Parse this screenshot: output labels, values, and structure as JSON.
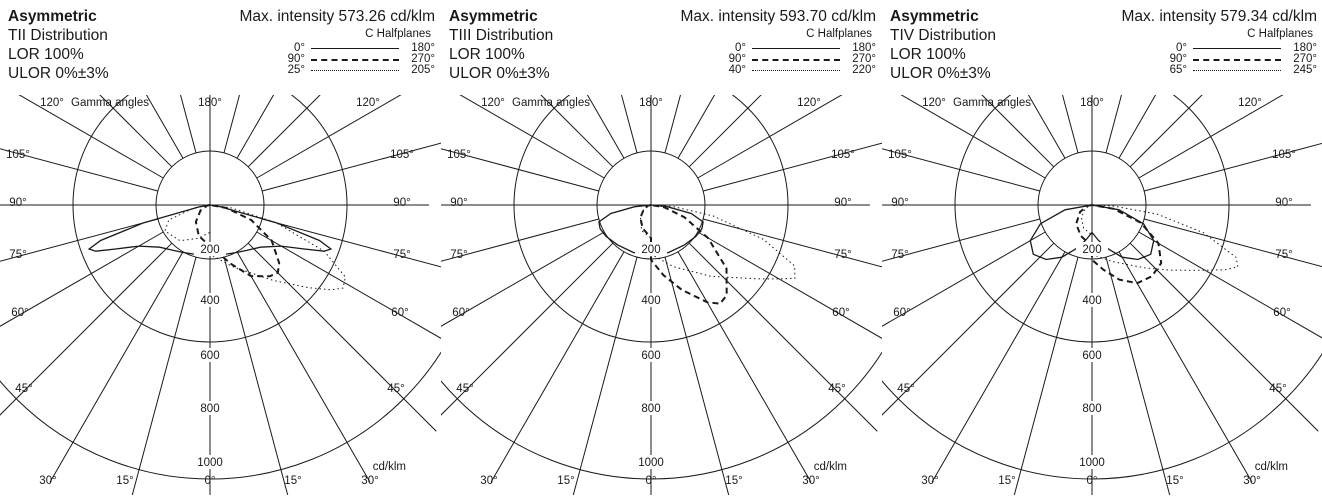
{
  "panels": [
    {
      "title": "Asymmetric",
      "distribution": "TII Distribution",
      "lor": "LOR 100%",
      "ulor": "ULOR 0%±3%",
      "max_intensity": "Max. intensity 573.26 cd/klm",
      "legend": {
        "title": "C Halfplanes",
        "rows": [
          {
            "a": "0°",
            "b": "180°",
            "style": "solid"
          },
          {
            "a": "90°",
            "b": "270°",
            "style": "dashed"
          },
          {
            "a": "25°",
            "b": "205°",
            "style": "dotted"
          }
        ]
      },
      "gamma_label": "Gamma angles",
      "unit_label": "cd/klm"
    },
    {
      "title": "Asymmetric",
      "distribution": "TIII Distribution",
      "lor": "LOR 100%",
      "ulor": "ULOR 0%±3%",
      "max_intensity": "Max. intensity 593.70 cd/klm",
      "legend": {
        "title": "C Halfplanes",
        "rows": [
          {
            "a": "0°",
            "b": "180°",
            "style": "solid"
          },
          {
            "a": "90°",
            "b": "270°",
            "style": "dashed"
          },
          {
            "a": "40°",
            "b": "220°",
            "style": "dotted"
          }
        ]
      },
      "gamma_label": "Gamma angles",
      "unit_label": "cd/klm"
    },
    {
      "title": "Asymmetric",
      "distribution": "TIV Distribution",
      "lor": "LOR 100%",
      "ulor": "ULOR 0%±3%",
      "max_intensity": "Max. intensity 579.34 cd/klm",
      "legend": {
        "title": "C Halfplanes",
        "rows": [
          {
            "a": "0°",
            "b": "180°",
            "style": "solid"
          },
          {
            "a": "90°",
            "b": "270°",
            "style": "dashed"
          },
          {
            "a": "65°",
            "b": "245°",
            "style": "dotted"
          }
        ]
      },
      "gamma_label": "Gamma angles",
      "unit_label": "cd/klm"
    }
  ],
  "chart_data": [
    {
      "type": "polar",
      "title": "TII Distribution",
      "radial_ticks": [
        200,
        400,
        600,
        800,
        1000
      ],
      "angle_labels_left": [
        "120°",
        "105°",
        "90°",
        "75°",
        "60°",
        "45°",
        "30°"
      ],
      "angle_labels_right": [
        "120°",
        "105°",
        "90°",
        "75°",
        "60°",
        "45°",
        "30°"
      ],
      "angle_labels_bottom": [
        "30°",
        "15°",
        "0°",
        "15°",
        "30°"
      ],
      "angle_label_top": "180°",
      "series": [
        {
          "name": "0° - 180°",
          "style": "solid",
          "left": [
            [
              0,
              180
            ],
            [
              10,
              185
            ],
            [
              20,
              190
            ],
            [
              30,
              200
            ],
            [
              40,
              215
            ],
            [
              50,
              240
            ],
            [
              60,
              300
            ],
            [
              65,
              380
            ],
            [
              68,
              450
            ],
            [
              70,
              470
            ],
            [
              72,
              420
            ],
            [
              75,
              250
            ],
            [
              80,
              40
            ],
            [
              90,
              0
            ]
          ],
          "right": [
            [
              0,
              180
            ],
            [
              10,
              185
            ],
            [
              20,
              190
            ],
            [
              30,
              200
            ],
            [
              40,
              215
            ],
            [
              50,
              240
            ],
            [
              60,
              300
            ],
            [
              65,
              380
            ],
            [
              68,
              450
            ],
            [
              70,
              470
            ],
            [
              72,
              420
            ],
            [
              75,
              250
            ],
            [
              80,
              40
            ],
            [
              90,
              0
            ]
          ]
        },
        {
          "name": "90° - 270°",
          "style": "dashed",
          "left": [
            [
              0,
              150
            ],
            [
              20,
              120
            ],
            [
              40,
              80
            ],
            [
              60,
              40
            ],
            [
              80,
              10
            ],
            [
              90,
              0
            ]
          ],
          "right": [
            [
              0,
              150
            ],
            [
              10,
              180
            ],
            [
              20,
              230
            ],
            [
              30,
              300
            ],
            [
              40,
              340
            ],
            [
              45,
              350
            ],
            [
              50,
              330
            ],
            [
              60,
              260
            ],
            [
              70,
              160
            ],
            [
              80,
              60
            ],
            [
              90,
              0
            ]
          ]
        },
        {
          "name": "25° - 205°",
          "style": "dotted",
          "left": [
            [
              0,
              100
            ],
            [
              20,
              130
            ],
            [
              40,
              170
            ],
            [
              60,
              190
            ],
            [
              70,
              160
            ],
            [
              80,
              60
            ],
            [
              90,
              0
            ]
          ],
          "right": [
            [
              0,
              180
            ],
            [
              20,
              240
            ],
            [
              40,
              360
            ],
            [
              50,
              470
            ],
            [
              55,
              540
            ],
            [
              58,
              573
            ],
            [
              62,
              560
            ],
            [
              68,
              450
            ],
            [
              75,
              250
            ],
            [
              82,
              80
            ],
            [
              90,
              0
            ]
          ]
        }
      ]
    },
    {
      "type": "polar",
      "title": "TIII Distribution",
      "radial_ticks": [
        200,
        400,
        600,
        800,
        1000
      ],
      "angle_labels_left": [
        "120°",
        "105°",
        "90°",
        "75°",
        "60°",
        "45°",
        "30°"
      ],
      "angle_labels_right": [
        "120°",
        "105°",
        "90°",
        "75°",
        "60°",
        "45°",
        "30°"
      ],
      "angle_labels_bottom": [
        "30°",
        "15°",
        "0°",
        "15°",
        "30°"
      ],
      "angle_label_top": "180°",
      "series": [
        {
          "name": "0° - 180°",
          "style": "solid",
          "left": [
            [
              0,
              180
            ],
            [
              20,
              185
            ],
            [
              40,
              190
            ],
            [
              55,
              200
            ],
            [
              65,
              205
            ],
            [
              72,
              200
            ],
            [
              78,
              150
            ],
            [
              84,
              60
            ],
            [
              90,
              0
            ]
          ],
          "right": [
            [
              0,
              180
            ],
            [
              20,
              185
            ],
            [
              40,
              190
            ],
            [
              55,
              200
            ],
            [
              65,
              205
            ],
            [
              72,
              200
            ],
            [
              78,
              150
            ],
            [
              84,
              60
            ],
            [
              90,
              0
            ]
          ]
        },
        {
          "name": "90° - 270°",
          "style": "dashed",
          "left": [
            [
              0,
              120
            ],
            [
              20,
              90
            ],
            [
              40,
              60
            ],
            [
              60,
              30
            ],
            [
              80,
              10
            ],
            [
              90,
              0
            ]
          ],
          "right": [
            [
              0,
              200
            ],
            [
              10,
              260
            ],
            [
              20,
              330
            ],
            [
              30,
              410
            ],
            [
              35,
              440
            ],
            [
              40,
              430
            ],
            [
              50,
              360
            ],
            [
              60,
              240
            ],
            [
              70,
              130
            ],
            [
              80,
              50
            ],
            [
              90,
              0
            ]
          ]
        },
        {
          "name": "40° - 220°",
          "style": "dotted",
          "left": [
            [
              0,
              120
            ],
            [
              20,
              100
            ],
            [
              40,
              60
            ],
            [
              60,
              30
            ],
            [
              80,
              10
            ],
            [
              90,
              0
            ]
          ],
          "right": [
            [
              0,
              180
            ],
            [
              20,
              240
            ],
            [
              40,
              340
            ],
            [
              55,
              470
            ],
            [
              60,
              540
            ],
            [
              63,
              590
            ],
            [
              67,
              570
            ],
            [
              73,
              430
            ],
            [
              80,
              230
            ],
            [
              86,
              80
            ],
            [
              90,
              0
            ]
          ]
        }
      ]
    },
    {
      "type": "polar",
      "title": "TIV Distribution",
      "radial_ticks": [
        200,
        400,
        600,
        800,
        1000
      ],
      "angle_labels_left": [
        "120°",
        "105°",
        "90°",
        "75°",
        "60°",
        "45°",
        "30°"
      ],
      "angle_labels_right": [
        "120°",
        "105°",
        "90°",
        "75°",
        "60°",
        "45°",
        "30°"
      ],
      "angle_labels_bottom": [
        "30°",
        "15°",
        "0°",
        "15°",
        "30°"
      ],
      "angle_label_top": "180°",
      "series": [
        {
          "name": "0° - 180°",
          "style": "solid",
          "left": [
            [
              0,
              100
            ],
            [
              10,
              130
            ],
            [
              20,
              170
            ],
            [
              30,
              220
            ],
            [
              40,
              260
            ],
            [
              50,
              280
            ],
            [
              60,
              260
            ],
            [
              70,
              200
            ],
            [
              80,
              100
            ],
            [
              90,
              0
            ]
          ],
          "right": [
            [
              0,
              100
            ],
            [
              10,
              130
            ],
            [
              20,
              170
            ],
            [
              30,
              220
            ],
            [
              40,
              260
            ],
            [
              50,
              280
            ],
            [
              60,
              260
            ],
            [
              70,
              200
            ],
            [
              80,
              100
            ],
            [
              90,
              0
            ]
          ]
        },
        {
          "name": "90° - 270°",
          "style": "dashed",
          "left": [
            [
              0,
              150
            ],
            [
              20,
              120
            ],
            [
              40,
              90
            ],
            [
              60,
              50
            ],
            [
              80,
              15
            ],
            [
              90,
              0
            ]
          ],
          "right": [
            [
              0,
              200
            ],
            [
              10,
              240
            ],
            [
              20,
              290
            ],
            [
              30,
              330
            ],
            [
              40,
              340
            ],
            [
              50,
              330
            ],
            [
              60,
              280
            ],
            [
              70,
              190
            ],
            [
              80,
              80
            ],
            [
              90,
              0
            ]
          ]
        },
        {
          "name": "65° - 245°",
          "style": "dotted",
          "left": [
            [
              0,
              110
            ],
            [
              20,
              90
            ],
            [
              40,
              60
            ],
            [
              60,
              30
            ],
            [
              80,
              10
            ],
            [
              90,
              0
            ]
          ],
          "right": [
            [
              0,
              180
            ],
            [
              20,
              220
            ],
            [
              40,
              300
            ],
            [
              50,
              370
            ],
            [
              58,
              450
            ],
            [
              64,
              540
            ],
            [
              67,
              579
            ],
            [
              70,
              560
            ],
            [
              76,
              420
            ],
            [
              82,
              240
            ],
            [
              87,
              80
            ],
            [
              90,
              0
            ]
          ]
        }
      ]
    }
  ]
}
